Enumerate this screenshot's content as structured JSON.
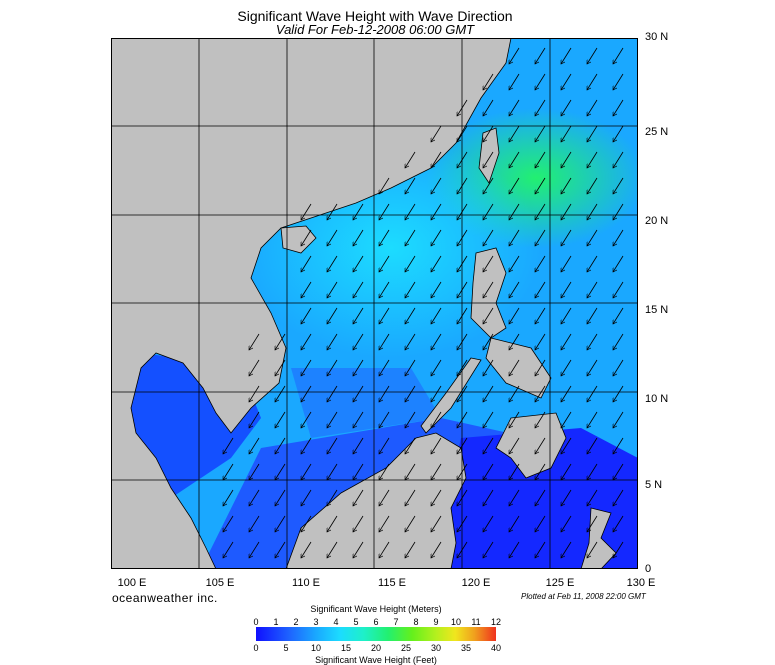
{
  "title": "Significant Wave Height with Wave Direction",
  "subtitle": "Valid For Feb-12-2008 06:00 GMT",
  "brand": "oceanweather inc.",
  "plotted": "Plotted at Feb 11, 2008 22:00 GMT",
  "lat_labels": [
    "30 N",
    "25 N",
    "20 N",
    "15 N",
    "10 N",
    "5 N",
    "0"
  ],
  "lon_labels": [
    "100 E",
    "105 E",
    "110 E",
    "115 E",
    "120 E",
    "125 E",
    "130 E"
  ],
  "legend": {
    "meters_title": "Significant Wave Height (Meters)",
    "feet_title": "Significant Wave Height (Feet)",
    "meter_ticks": [
      "0",
      "1",
      "2",
      "3",
      "4",
      "5",
      "6",
      "7",
      "8",
      "9",
      "10",
      "11",
      "12"
    ],
    "feet_ticks": [
      "0",
      "5",
      "10",
      "15",
      "20",
      "25",
      "30",
      "35",
      "40"
    ]
  },
  "colors": {
    "land": "#c0c0c0",
    "sea_low": "#1010ff",
    "sea_mid": "#1aa8ff",
    "sea_high": "#22f070"
  },
  "map_extent": {
    "lon": [
      100,
      130
    ],
    "lat": [
      0,
      30
    ]
  },
  "wave_direction": "northeast monsoon swell, arrows pointing southwest"
}
